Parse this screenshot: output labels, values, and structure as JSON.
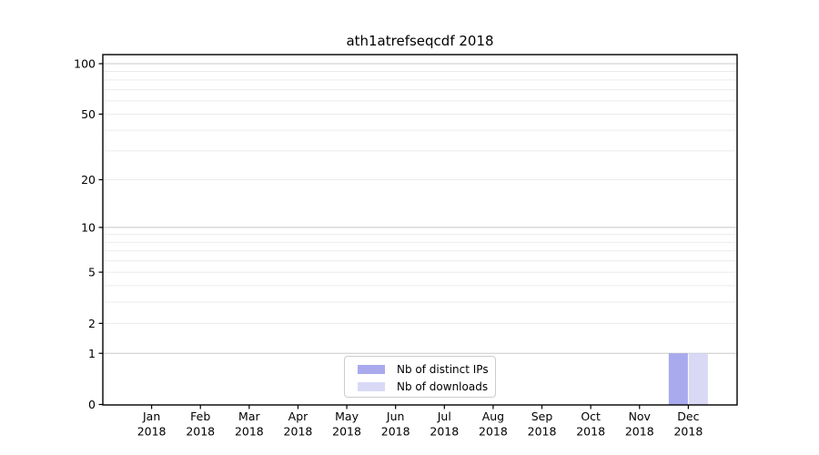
{
  "chart_data": {
    "type": "bar",
    "title": "ath1atrefseqcdf 2018",
    "categories": [
      "Jan",
      "Feb",
      "Mar",
      "Apr",
      "May",
      "Jun",
      "Jul",
      "Aug",
      "Sep",
      "Oct",
      "Nov",
      "Dec"
    ],
    "category_year": "2018",
    "series": [
      {
        "name": "Nb of distinct IPs",
        "color": "#a9a9ee",
        "values": [
          0,
          0,
          0,
          0,
          0,
          0,
          0,
          0,
          0,
          0,
          0,
          1
        ]
      },
      {
        "name": "Nb of downloads",
        "color": "#d9d9f6",
        "values": [
          0,
          0,
          0,
          0,
          0,
          0,
          0,
          0,
          0,
          0,
          0,
          1
        ]
      }
    ],
    "y_scale": "log10(1+v)",
    "y_ticks": [
      0,
      1,
      2,
      5,
      10,
      20,
      50,
      100
    ],
    "y_major_gridlines": [
      1,
      10,
      100
    ],
    "y_minor_gridlines": [
      2,
      3,
      4,
      5,
      6,
      7,
      8,
      9,
      20,
      30,
      40,
      50,
      60,
      70,
      80,
      90
    ],
    "ylim": [
      0,
      113
    ],
    "grid": true,
    "legend_position": "bottom-center",
    "colors": {
      "minor_gridline": "#ebebeb",
      "major_gridline": "#c8c8c8",
      "axis": "#000000",
      "background": "#ffffff"
    }
  }
}
